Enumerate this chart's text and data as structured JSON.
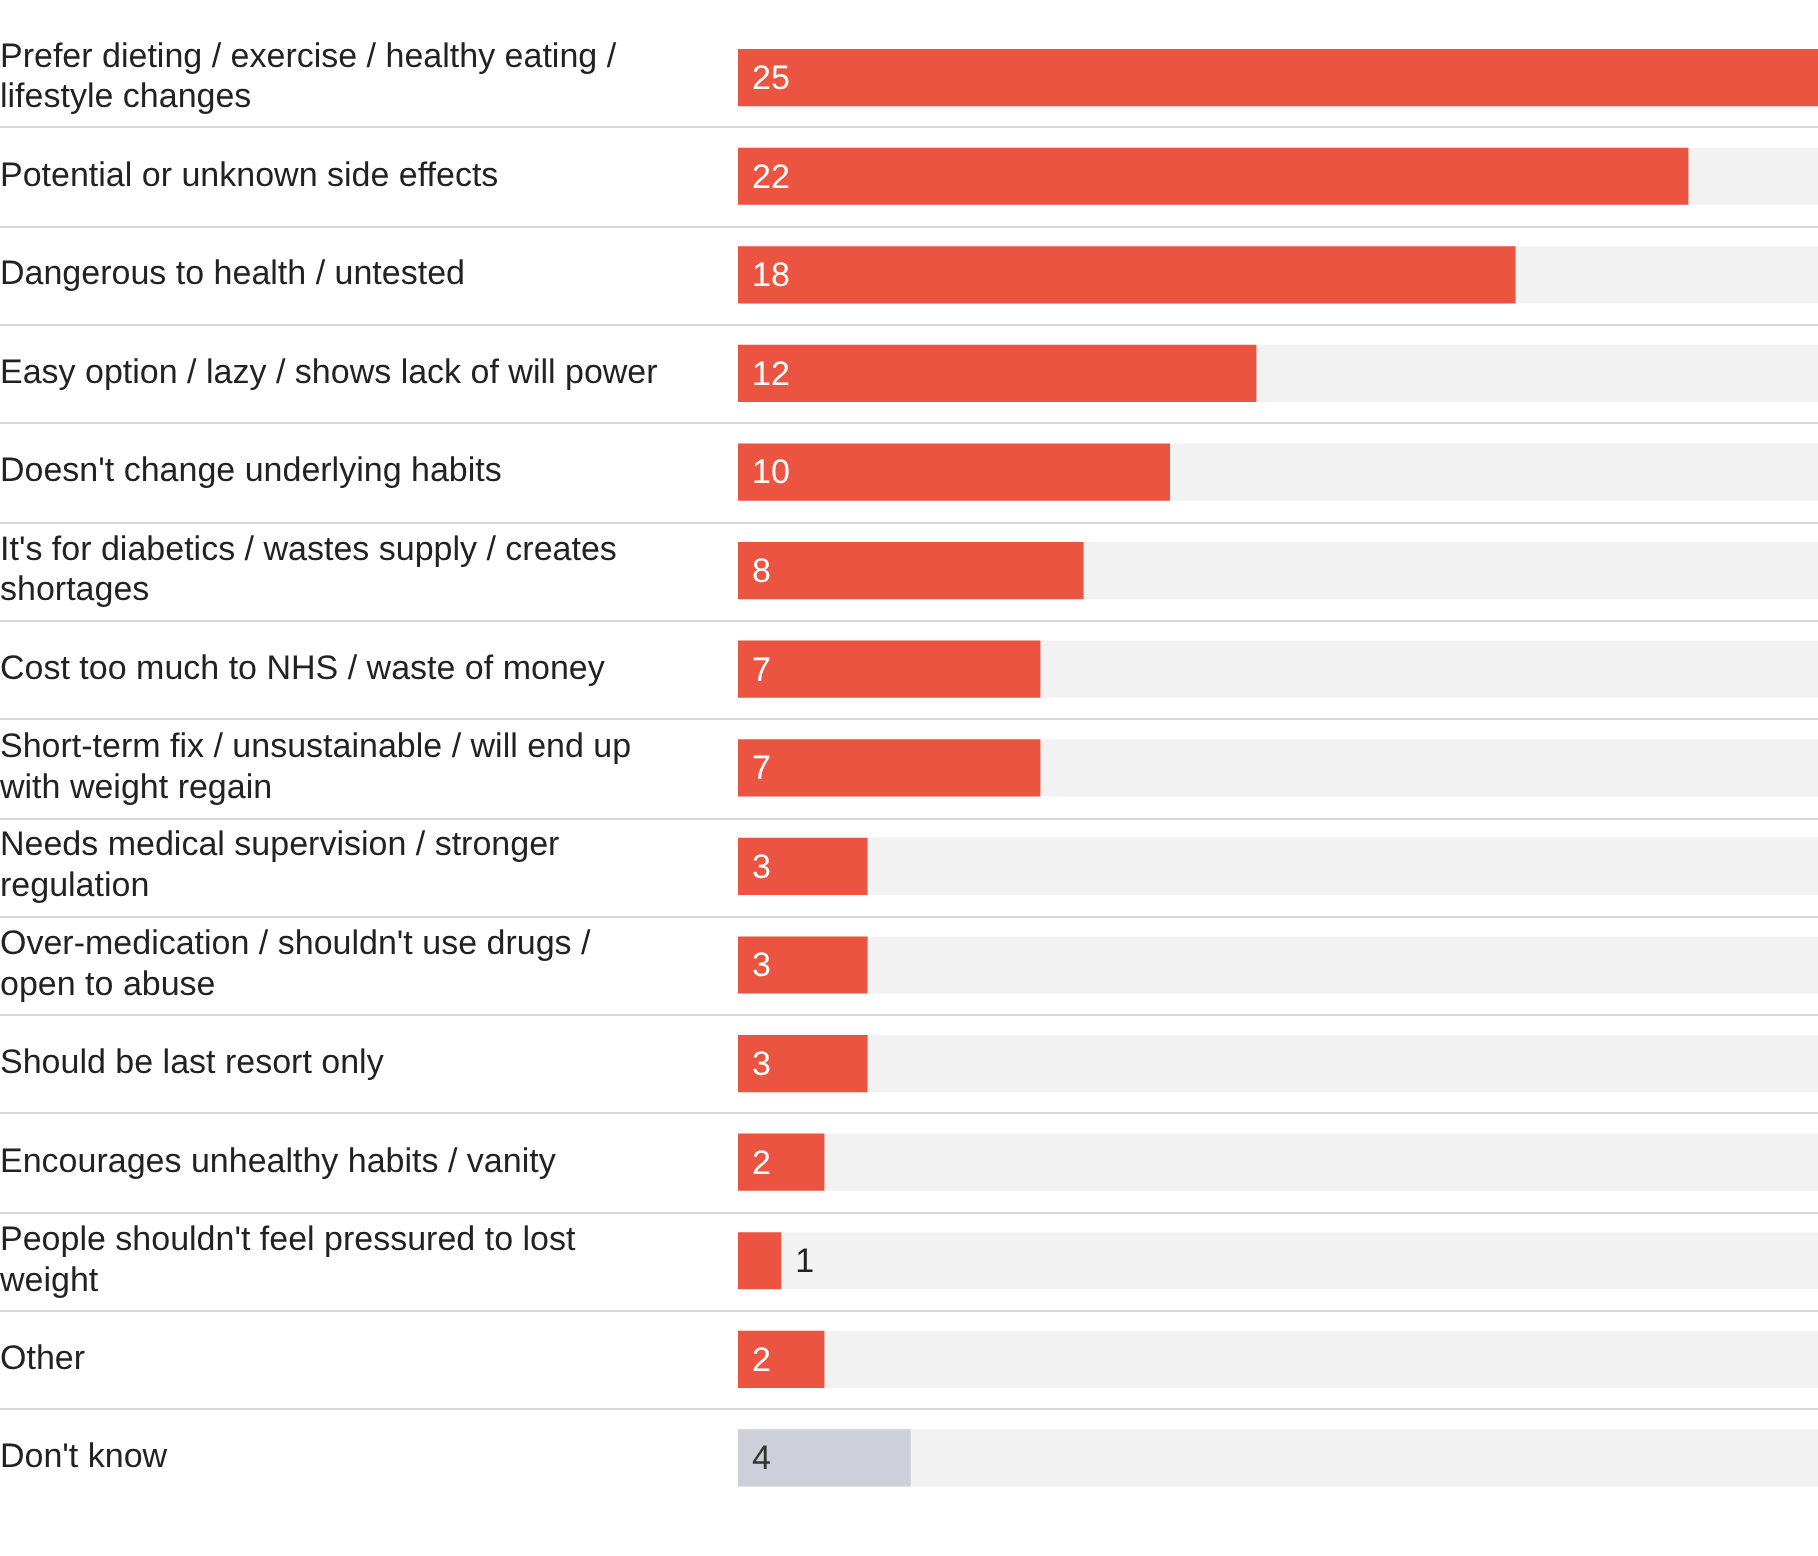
{
  "chart_data": {
    "type": "bar",
    "orientation": "horizontal",
    "categories": [
      "Prefer dieting / exercise / healthy eating / lifestyle changes",
      "Potential or unknown side effects",
      "Dangerous to health / untested",
      "Easy option / lazy / shows lack of will power",
      "Doesn't change underlying habits",
      "It's for diabetics / wastes supply / creates shortages",
      "Cost too much to NHS / waste of money",
      "Short-term fix / unsustainable / will end up with weight regain",
      "Needs medical supervision / stronger regulation",
      "Over-medication / shouldn't use drugs / open to abuse",
      "Should be last resort only",
      "Encourages unhealthy habits / vanity",
      "People shouldn't feel pressured to lost weight",
      "Other",
      "Don't know"
    ],
    "values": [
      25,
      22,
      18,
      12,
      10,
      8,
      7,
      7,
      3,
      3,
      3,
      2,
      1,
      2,
      4
    ],
    "colors": [
      "#ea5440",
      "#ea5440",
      "#ea5440",
      "#ea5440",
      "#ea5440",
      "#ea5440",
      "#ea5440",
      "#ea5440",
      "#ea5440",
      "#ea5440",
      "#ea5440",
      "#ea5440",
      "#ea5440",
      "#ea5440",
      "#cdd0d8"
    ],
    "xlim": [
      0,
      25
    ],
    "data_labels": true,
    "grid": "y",
    "legend": false,
    "tick_labels": "y"
  }
}
